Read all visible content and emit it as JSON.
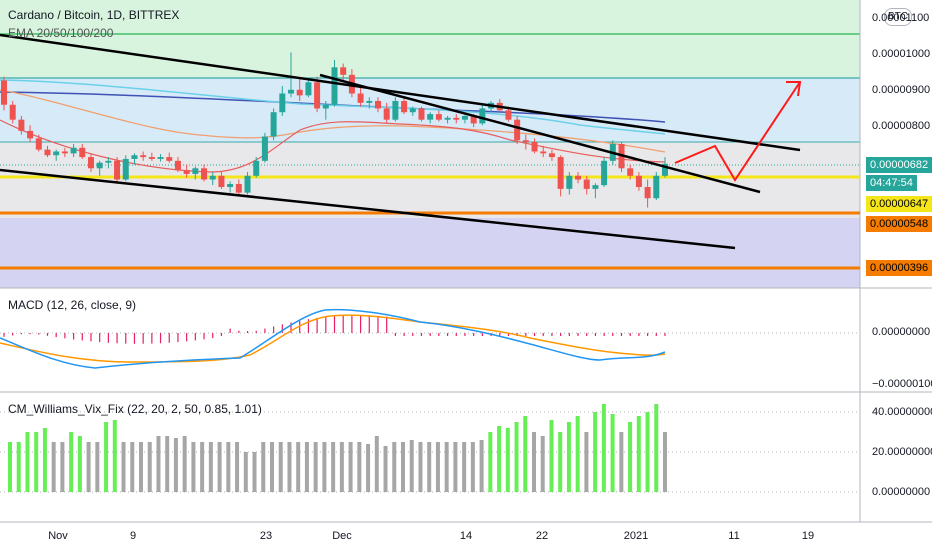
{
  "header": {
    "title": "Cardano / Bitcoin, 1D, BITTREX",
    "indicator": "EMA 20/50/100/200",
    "currency_badge": "BTC"
  },
  "price_tags": {
    "current": "0.00000682",
    "countdown": "04:47:54",
    "yellow_level": "0.00000647",
    "orange_level": "0.00000548",
    "low_level": "0.00000396"
  },
  "colors": {
    "up_candle": "#26a69a",
    "down_candle": "#ef5350",
    "trendline": "#000000",
    "forecast_arrow": "#ff1a1a",
    "yellow_level": "#f5e61a",
    "orange_level": "#f57c00",
    "macd_line": "#2196f3",
    "signal_line": "#ff9800",
    "vix_high": "#66ee55",
    "vix_normal": "#a6a6a6"
  },
  "macd": {
    "title": "MACD (12, 26, close, 9)",
    "ticks": [
      "0.00000000",
      "−0.00000100"
    ]
  },
  "vix": {
    "title": "CM_Williams_Vix_Fix (22, 20, 2, 50, 0.85, 1.01)",
    "ticks": [
      "40.00000000",
      "20.00000000",
      "0.00000000"
    ]
  },
  "chart_data": {
    "type": "candlestick",
    "title": "Cardano / Bitcoin, 1D, BITTREX",
    "y_axis_ticks": [
      "0.00001100",
      "0.00001000",
      "0.00000900",
      "0.00000800",
      "0.00000682",
      "0.00000647",
      "0.00000548",
      "0.00000396"
    ],
    "x_axis_ticks": [
      "Nov",
      "9",
      "23",
      "Dec",
      "14",
      "22",
      "2021",
      "11",
      "19"
    ],
    "ylim": [
      3.5e-06,
      1.12e-05
    ],
    "horizontal_levels": [
      6.47e-06,
      5.48e-06,
      3.96e-06
    ],
    "candles": [
      [
        9.05e-06,
        9.15e-06,
        8.25e-06,
        8.4e-06
      ],
      [
        8.4e-06,
        8.5e-06,
        7.9e-06,
        8e-06
      ],
      [
        8e-06,
        8.1e-06,
        7.6e-06,
        7.7e-06
      ],
      [
        7.7e-06,
        7.85e-06,
        7.4e-06,
        7.5e-06
      ],
      [
        7.5e-06,
        7.6e-06,
        7.15e-06,
        7.2e-06
      ],
      [
        7.2e-06,
        7.3e-06,
        7e-06,
        7.05e-06
      ],
      [
        7.05e-06,
        7.2e-06,
        6.9e-06,
        7.15e-06
      ],
      [
        7.15e-06,
        7.25e-06,
        7e-06,
        7.1e-06
      ],
      [
        7.1e-06,
        7.35e-06,
        7e-06,
        7.25e-06
      ],
      [
        7.25e-06,
        7.35e-06,
        6.95e-06,
        7e-06
      ],
      [
        7e-06,
        7.1e-06,
        6.6e-06,
        6.7e-06
      ],
      [
        6.7e-06,
        6.9e-06,
        6.5e-06,
        6.85e-06
      ],
      [
        6.85e-06,
        7e-06,
        6.7e-06,
        6.9e-06
      ],
      [
        6.9e-06,
        7e-06,
        6.35e-06,
        6.4e-06
      ],
      [
        6.4e-06,
        7.05e-06,
        6.35e-06,
        6.95e-06
      ],
      [
        6.95e-06,
        7.1e-06,
        6.8e-06,
        7.05e-06
      ],
      [
        7.05e-06,
        7.15e-06,
        6.9e-06,
        7e-06
      ],
      [
        7e-06,
        7.12e-06,
        6.9e-06,
        6.95e-06
      ],
      [
        6.95e-06,
        7.08e-06,
        6.88e-06,
        7e-06
      ],
      [
        7e-06,
        7.12e-06,
        6.85e-06,
        6.9e-06
      ],
      [
        6.9e-06,
        7e-06,
        6.6e-06,
        6.65e-06
      ],
      [
        6.65e-06,
        6.8e-06,
        6.45e-06,
        6.55e-06
      ],
      [
        6.55e-06,
        6.75e-06,
        6.4e-06,
        6.7e-06
      ],
      [
        6.7e-06,
        6.8e-06,
        6.35e-06,
        6.4e-06
      ],
      [
        6.4e-06,
        6.6e-06,
        6.25e-06,
        6.5e-06
      ],
      [
        6.5e-06,
        6.6e-06,
        6.15e-06,
        6.2e-06
      ],
      [
        6.2e-06,
        6.35e-06,
        6.05e-06,
        6.28e-06
      ],
      [
        6.28e-06,
        6.4e-06,
        6e-06,
        6.05e-06
      ],
      [
        6.05e-06,
        6.6e-06,
        6e-06,
        6.5e-06
      ],
      [
        6.5e-06,
        7e-06,
        6.45e-06,
        6.9e-06
      ],
      [
        6.9e-06,
        7.65e-06,
        6.85e-06,
        7.55e-06
      ],
      [
        7.55e-06,
        8.3e-06,
        7.45e-06,
        8.2e-06
      ],
      [
        8.2e-06,
        8.9e-06,
        8.1e-06,
        8.7e-06
      ],
      [
        8.7e-06,
        9.8e-06,
        8.6e-06,
        8.8e-06
      ],
      [
        8.8e-06,
        9.1e-06,
        8.5e-06,
        8.65e-06
      ],
      [
        8.65e-06,
        9.1e-06,
        8.6e-06,
        9e-06
      ],
      [
        9e-06,
        9.15e-06,
        8.2e-06,
        8.3e-06
      ],
      [
        8.3e-06,
        8.5e-06,
        8e-06,
        8.4e-06
      ],
      [
        8.4e-06,
        9.6e-06,
        8.35e-06,
        9.4e-06
      ],
      [
        9.4e-06,
        9.5e-06,
        9e-06,
        9.2e-06
      ],
      [
        9.2e-06,
        9.35e-06,
        8.6e-06,
        8.7e-06
      ],
      [
        8.7e-06,
        8.85e-06,
        8.35e-06,
        8.45e-06
      ],
      [
        8.45e-06,
        8.6e-06,
        8.3e-06,
        8.5e-06
      ],
      [
        8.5e-06,
        8.6e-06,
        8.2e-06,
        8.3e-06
      ],
      [
        8.3e-06,
        8.45e-06,
        7.9e-06,
        8e-06
      ],
      [
        8e-06,
        8.6e-06,
        7.95e-06,
        8.5e-06
      ],
      [
        8.5e-06,
        8.6e-06,
        8.15e-06,
        8.2e-06
      ],
      [
        8.2e-06,
        8.35e-06,
        8.1e-06,
        8.3e-06
      ],
      [
        8.3e-06,
        8.35e-06,
        7.95e-06,
        8e-06
      ],
      [
        8e-06,
        8.2e-06,
        7.9e-06,
        8.15e-06
      ],
      [
        8.15e-06,
        8.25e-06,
        7.95e-06,
        8e-06
      ],
      [
        8e-06,
        8.1e-06,
        7.9e-06,
        8.05e-06
      ],
      [
        8.05e-06,
        8.15e-06,
        7.9e-06,
        8e-06
      ],
      [
        8e-06,
        8.12e-06,
        7.9e-06,
        8.1e-06
      ],
      [
        8.1e-06,
        8.15e-06,
        7.8e-06,
        7.9e-06
      ],
      [
        7.9e-06,
        8.4e-06,
        7.85e-06,
        8.3e-06
      ],
      [
        8.3e-06,
        8.5e-06,
        8.2e-06,
        8.45e-06
      ],
      [
        8.45e-06,
        8.55e-06,
        8.2e-06,
        8.25e-06
      ],
      [
        8.25e-06,
        8.35e-06,
        7.95e-06,
        8e-06
      ],
      [
        8e-06,
        8.1e-06,
        7.35e-06,
        7.45e-06
      ],
      [
        7.45e-06,
        7.6e-06,
        7.2e-06,
        7.4e-06
      ],
      [
        7.4e-06,
        7.5e-06,
        7.1e-06,
        7.15e-06
      ],
      [
        7.15e-06,
        7.3e-06,
        7e-06,
        7.1e-06
      ],
      [
        7.1e-06,
        7.2e-06,
        6.9e-06,
        7e-06
      ],
      [
        7e-06,
        7.05e-06,
        5.95e-06,
        6.15e-06
      ],
      [
        6.15e-06,
        6.6e-06,
        6e-06,
        6.5e-06
      ],
      [
        6.5e-06,
        6.6e-06,
        6.3e-06,
        6.4e-06
      ],
      [
        6.4e-06,
        6.5e-06,
        6e-06,
        6.15e-06
      ],
      [
        6.15e-06,
        6.3e-06,
        5.9e-06,
        6.25e-06
      ],
      [
        6.25e-06,
        7e-06,
        6.2e-06,
        6.9e-06
      ],
      [
        6.9e-06,
        7.45e-06,
        6.8e-06,
        7.35e-06
      ],
      [
        7.35e-06,
        7.4e-06,
        6.6e-06,
        6.7e-06
      ],
      [
        6.7e-06,
        6.8e-06,
        6.4e-06,
        6.5e-06
      ],
      [
        6.5e-06,
        6.6e-06,
        6.1e-06,
        6.2e-06
      ],
      [
        6.2e-06,
        6.4e-06,
        5.65e-06,
        5.9e-06
      ],
      [
        5.9e-06,
        6.6e-06,
        5.85e-06,
        6.5e-06
      ],
      [
        6.5e-06,
        7e-06,
        6.45e-06,
        6.82e-06
      ]
    ],
    "vix_values": [
      25,
      25,
      30,
      30,
      32,
      25,
      25,
      30,
      28,
      25,
      25,
      35,
      36,
      25,
      25,
      25,
      25,
      28,
      28,
      27,
      28,
      25,
      25,
      25,
      25,
      25,
      25,
      20,
      20,
      25,
      25,
      25,
      25,
      25,
      25,
      25,
      25,
      25,
      25,
      25,
      25,
      24,
      28,
      23,
      25,
      25,
      26,
      25,
      25,
      25,
      25,
      25,
      25,
      25,
      26,
      30,
      33,
      32,
      35,
      38,
      30,
      28,
      36,
      30,
      35,
      38,
      30,
      40,
      44,
      39,
      30,
      35,
      38,
      40,
      44,
      30
    ],
    "vix_high_flags": [
      1,
      1,
      1,
      1,
      1,
      0,
      0,
      1,
      1,
      0,
      0,
      1,
      1,
      0,
      0,
      0,
      0,
      0,
      0,
      0,
      0,
      0,
      0,
      0,
      0,
      0,
      0,
      0,
      0,
      0,
      0,
      0,
      0,
      0,
      0,
      0,
      0,
      0,
      0,
      0,
      0,
      0,
      0,
      0,
      0,
      0,
      0,
      0,
      0,
      0,
      0,
      0,
      0,
      0,
      0,
      1,
      1,
      1,
      1,
      1,
      0,
      0,
      1,
      1,
      1,
      1,
      0,
      1,
      1,
      1,
      0,
      1,
      1,
      1,
      1,
      0
    ]
  }
}
